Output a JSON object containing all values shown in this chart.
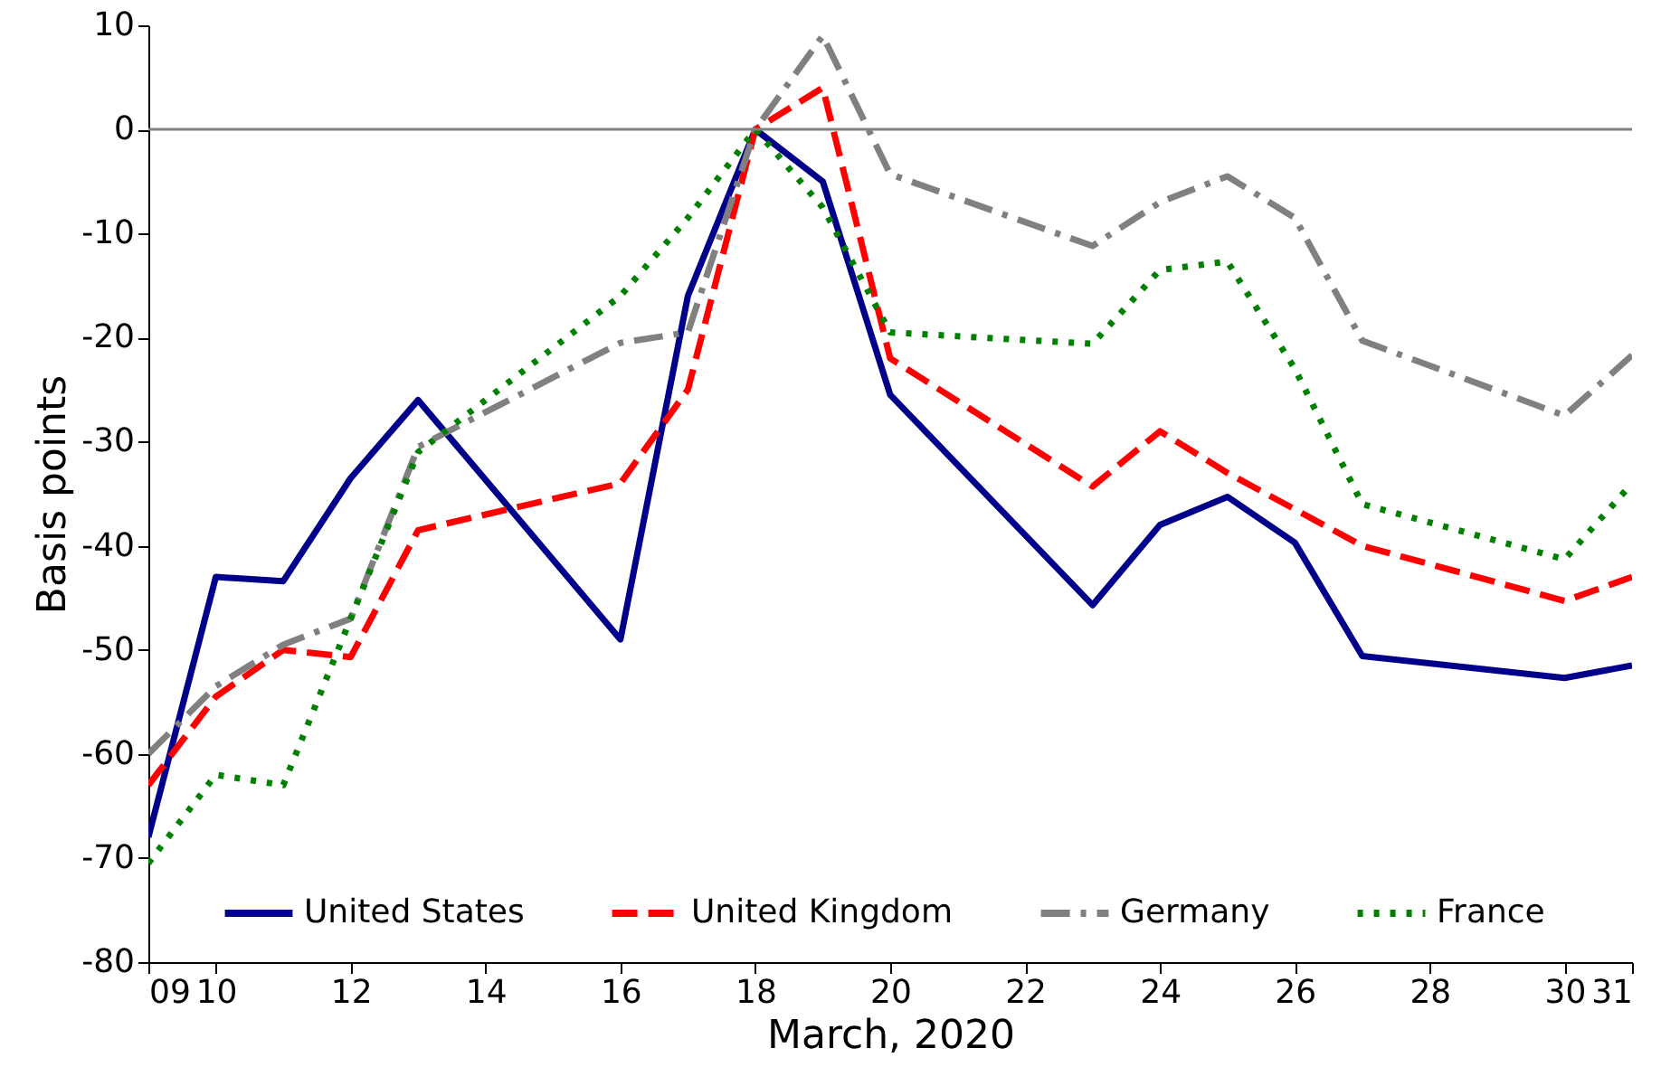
{
  "chart_data": {
    "type": "line",
    "xlabel": "March, 2020",
    "ylabel": "Basis points",
    "x": [
      9,
      10,
      11,
      12,
      13,
      16,
      17,
      18,
      19,
      20,
      23,
      24,
      25,
      26,
      27,
      30,
      31
    ],
    "series": [
      {
        "name": "United States",
        "color": "#00008b",
        "line_style": "solid",
        "values": [
          -68,
          -43,
          -43.4,
          -33.5,
          -26,
          -49,
          -16,
          0,
          -5,
          -25.5,
          -45.7,
          -38,
          -35.3,
          -39.7,
          -50.6,
          -52.7,
          -51.5
        ]
      },
      {
        "name": "United Kingdom",
        "color": "#ff0000",
        "line_style": "dashed",
        "values": [
          -63,
          -54.5,
          -50,
          -50.7,
          -38.5,
          -34,
          -25,
          0,
          4,
          -22,
          -34.3,
          -29,
          -33,
          -36.5,
          -40,
          -45.3,
          -43
        ]
      },
      {
        "name": "Germany",
        "color": "#808080",
        "line_style": "dashdot",
        "values": [
          -60,
          -53.5,
          -49.5,
          -47,
          -30.5,
          -20.5,
          -19.5,
          0,
          9,
          -4.3,
          -11.2,
          -7,
          -4.5,
          -8.5,
          -20.3,
          -27.5,
          -21.7
        ]
      },
      {
        "name": "France",
        "color": "#008000",
        "line_style": "dotted",
        "values": [
          -70.5,
          -62,
          -63,
          -47,
          -31,
          -16,
          -8.5,
          0,
          -7.5,
          -19.5,
          -20.6,
          -13.5,
          -12.7,
          -23,
          -36,
          -41.3,
          -34
        ]
      }
    ],
    "xlim": [
      9,
      31
    ],
    "xticks": [
      {
        "value": 9,
        "label": "09"
      },
      10,
      12,
      14,
      16,
      18,
      20,
      22,
      24,
      26,
      28,
      30,
      31
    ],
    "ylim": [
      -80,
      10
    ],
    "yticks": [
      -80,
      -70,
      -60,
      -50,
      -40,
      -30,
      -20,
      -10,
      0,
      10
    ],
    "ref_lines": [
      {
        "axis": "y",
        "value": 0,
        "color": "#808080"
      }
    ],
    "grid": false,
    "legend": "bottom"
  }
}
